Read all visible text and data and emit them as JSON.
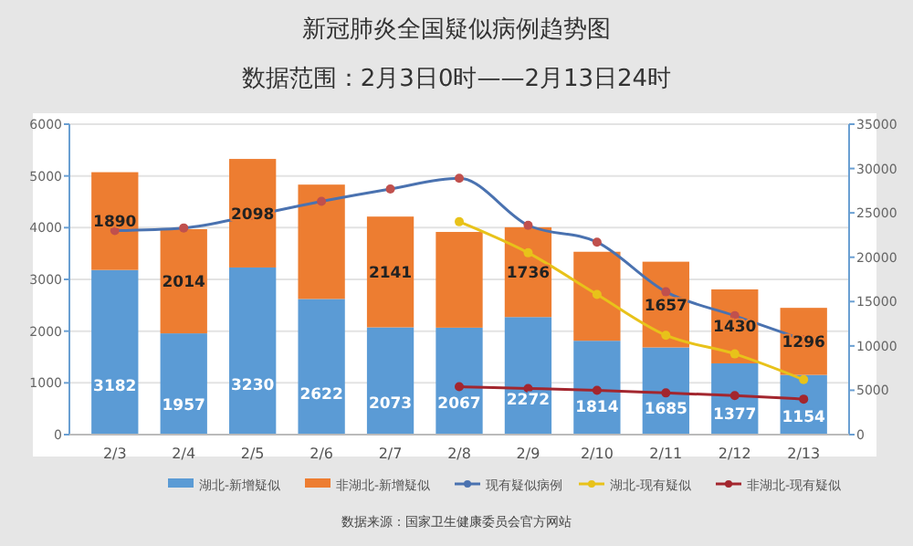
{
  "chart_data": {
    "type": "bar",
    "title": "新冠肺炎全国疑似病例趋势图",
    "subtitle": "数据范围：2月3日0时——2月13日24时",
    "categories": [
      "2/3",
      "2/4",
      "2/5",
      "2/6",
      "2/7",
      "2/8",
      "2/9",
      "2/10",
      "2/11",
      "2/12",
      "2/13"
    ],
    "stacked": true,
    "ylim": [
      0,
      6000
    ],
    "yticks": [
      0,
      1000,
      2000,
      3000,
      4000,
      5000,
      6000
    ],
    "y2lim": [
      0,
      35000
    ],
    "y2ticks": [
      0,
      5000,
      10000,
      15000,
      20000,
      25000,
      30000,
      35000
    ],
    "grid": "y",
    "legend": "bottom",
    "marker": "circle",
    "series": [
      {
        "name": "湖北-新增疑似",
        "color": "#5b9bd5",
        "values": [
          3182,
          1957,
          3230,
          2622,
          2073,
          2067,
          2272,
          1814,
          1685,
          1377,
          1154
        ],
        "value_labels": [
          "3182",
          "1957",
          "3230",
          "2622",
          "2073",
          "2067",
          "2272",
          "1814",
          "1685",
          "1377",
          "1154"
        ]
      },
      {
        "name": "非湖北-新增疑似",
        "color": "#ed7d31",
        "values": [
          1890,
          2014,
          2098,
          2210,
          2141,
          1850,
          1736,
          1720,
          1657,
          1430,
          1296
        ],
        "value_labels": [
          "1890",
          "2014",
          "2098",
          null,
          "2141",
          null,
          "1736",
          null,
          "1657",
          "1430",
          "1296"
        ]
      },
      {
        "name": "现有疑似病例",
        "type": "line",
        "axis": "y2",
        "color": "#4a72b0",
        "values": [
          23000,
          23300,
          24700,
          26300,
          27700,
          28900,
          23600,
          21700,
          16100,
          13400,
          10700
        ]
      },
      {
        "name": "湖北-现有疑似",
        "type": "line",
        "axis": "y2",
        "color": "#e8c21a",
        "values": [
          null,
          null,
          null,
          null,
          null,
          24000,
          20500,
          15800,
          11200,
          9100,
          6200
        ]
      },
      {
        "name": "非湖北-现有疑似",
        "type": "line",
        "axis": "y2",
        "color": "#a3262e",
        "values": [
          null,
          null,
          null,
          null,
          null,
          5400,
          5200,
          5000,
          4700,
          4400,
          4000
        ]
      }
    ],
    "annotations": [
      "数据来源：国家卫生健康委员会官方网站"
    ]
  }
}
